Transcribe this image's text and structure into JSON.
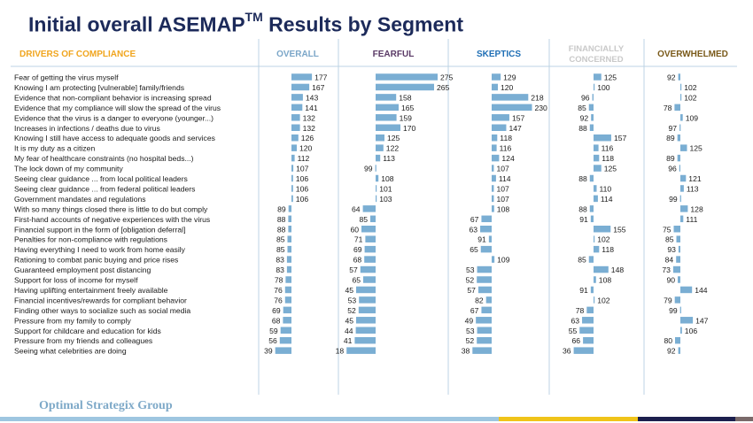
{
  "title": "Initial overall ASEMAP",
  "title_sup": "TM",
  "title_suffix": " Results by Segment",
  "footer": "Optimal Strategix Group",
  "colors": {
    "bar": "#7aaed3",
    "header_drivers": "#f0a51e",
    "header_overall": "#7ba6c8",
    "header_fearful": "#5a3a66",
    "header_skeptics": "#1f6fb5",
    "header_financially": "#c9c9c9",
    "header_overwhelmed": "#7a5a1a",
    "divider": "#bcd3e4",
    "text": "#1a1a1a"
  },
  "chart_data": {
    "type": "bar",
    "title": "Initial overall ASEMAP™ Results by Segment",
    "category_header": "DRIVERS OF COMPLIANCE",
    "baseline": 100,
    "categories": [
      "Fear of getting the virus myself",
      "Knowing I am protecting [vulnerable] family/friends",
      "Evidence that non-compliant behavior is increasing spread",
      "Evidence that my compliance will slow the spread of the virus",
      "Evidence that the virus is a danger to everyone (younger...)",
      "Increases in infections / deaths due to virus",
      "Knowing I still have access to adequate goods and services",
      "It is my duty as a citizen",
      "My fear of healthcare constraints (no hospital beds...)",
      "The lock down of my community",
      "Seeing clear guidance ... from  local political leaders",
      "Seeing clear guidance ... from  federal political leaders",
      "Government mandates and regulations",
      "With so many things closed there is little to do but comply",
      "First-hand accounts of negative experiences with the virus",
      "Financial support in the form of [obligation deferral]",
      "Penalties for non-compliance with regulations",
      "Having everything I need to work from home easily",
      "Rationing to combat panic buying and price rises",
      "Guaranteed employment  post distancing",
      "Support  for loss of income for myself",
      "Having uplifting entertainment freely available",
      "Financial incentives/rewards for compliant behavior",
      "Finding other ways to socialize such as social media",
      "Pressure from my family to comply",
      "Support  for childcare and education for kids",
      "Pressure from my friends and colleagues",
      "Seeing what celebrities are doing"
    ],
    "series": [
      {
        "name": "OVERALL",
        "values": [
          177,
          167,
          143,
          141,
          132,
          132,
          126,
          120,
          112,
          107,
          106,
          106,
          106,
          89,
          88,
          88,
          85,
          85,
          83,
          83,
          78,
          76,
          76,
          69,
          68,
          59,
          56,
          39
        ]
      },
      {
        "name": "FEARFUL",
        "values": [
          275,
          265,
          158,
          165,
          159,
          170,
          125,
          122,
          113,
          99,
          108,
          101,
          103,
          64,
          85,
          60,
          71,
          69,
          68,
          57,
          65,
          45,
          53,
          52,
          45,
          44,
          41,
          18
        ]
      },
      {
        "name": "SKEPTICS",
        "values": [
          129,
          120,
          218,
          230,
          157,
          147,
          118,
          116,
          124,
          107,
          114,
          107,
          107,
          108,
          67,
          63,
          91,
          65,
          109,
          53,
          52,
          57,
          82,
          67,
          49,
          53,
          52,
          38
        ]
      },
      {
        "name": "FINANCIALLY CONCERNED",
        "values": [
          125,
          100,
          96,
          85,
          92,
          88,
          157,
          116,
          118,
          125,
          88,
          110,
          114,
          88,
          91,
          155,
          102,
          118,
          85,
          148,
          108,
          91,
          102,
          78,
          63,
          55,
          66,
          36
        ]
      },
      {
        "name": "OVERWHELMED",
        "values": [
          92,
          102,
          102,
          78,
          109,
          97,
          89,
          125,
          89,
          96,
          121,
          113,
          99,
          128,
          111,
          75,
          85,
          93,
          84,
          73,
          90,
          144,
          79,
          99,
          147,
          106,
          80,
          92
        ]
      }
    ]
  }
}
